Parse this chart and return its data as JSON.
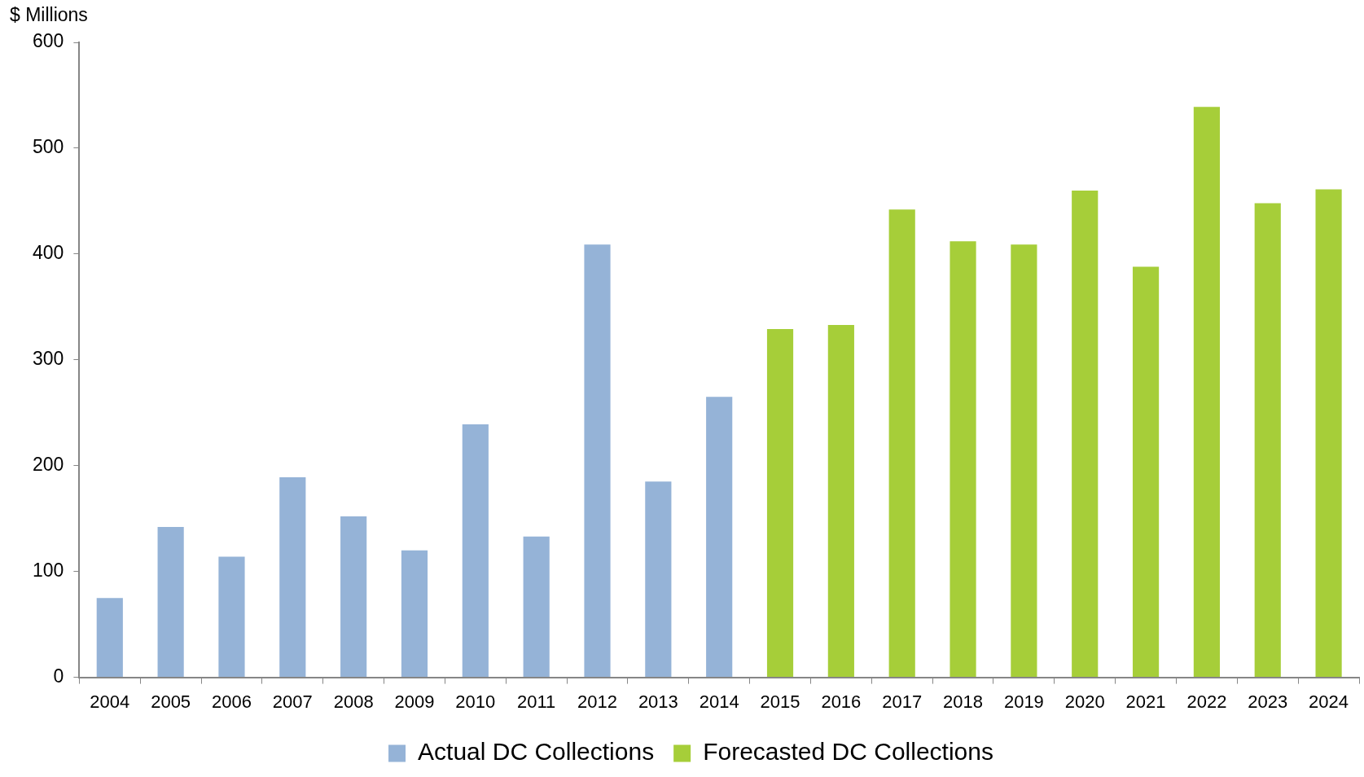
{
  "chart_data": {
    "type": "bar",
    "ylabel": "$ Millions",
    "categories": [
      "2004",
      "2005",
      "2006",
      "2007",
      "2008",
      "2009",
      "2010",
      "2011",
      "2012",
      "2013",
      "2014",
      "2015",
      "2016",
      "2017",
      "2018",
      "2019",
      "2020",
      "2021",
      "2022",
      "2023",
      "2024"
    ],
    "series": [
      {
        "name": "Actual DC Collections",
        "color": "#95b3d7",
        "values": [
          75,
          142,
          114,
          189,
          152,
          120,
          239,
          133,
          409,
          185,
          265,
          null,
          null,
          null,
          null,
          null,
          null,
          null,
          null,
          null,
          null
        ]
      },
      {
        "name": "Forecasted DC Collections",
        "color": "#a6ce39",
        "values": [
          null,
          null,
          null,
          null,
          null,
          null,
          null,
          null,
          null,
          null,
          null,
          329,
          333,
          442,
          412,
          409,
          460,
          388,
          539,
          448,
          461
        ]
      }
    ],
    "ylim": [
      0,
      600
    ],
    "yticks": [
      0,
      100,
      200,
      300,
      400,
      500,
      600
    ],
    "legend": "bottom"
  }
}
